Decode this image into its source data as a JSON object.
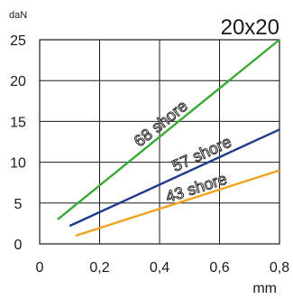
{
  "chart_data": {
    "type": "line",
    "title": "20x20",
    "xlabel": "mm",
    "ylabel": "daN",
    "xlim": [
      0,
      0.8
    ],
    "ylim": [
      0,
      25
    ],
    "x_ticks": [
      0,
      0.2,
      0.4,
      0.6,
      0.8
    ],
    "x_tick_labels": [
      "0",
      "0,2",
      "0,4",
      "0,6",
      "0,8"
    ],
    "y_ticks": [
      0,
      5,
      10,
      15,
      20,
      25
    ],
    "y_tick_labels": [
      "0",
      "5",
      "10",
      "15",
      "20",
      "25"
    ],
    "grid": true,
    "series": [
      {
        "name": "68 shore",
        "color": "#3aaa35",
        "x": [
          0.06,
          0.8
        ],
        "y": [
          3.0,
          25.0
        ]
      },
      {
        "name": "57 shore",
        "color": "#1f3a8a",
        "x": [
          0.1,
          0.8
        ],
        "y": [
          2.2,
          14.0
        ]
      },
      {
        "name": "43 shore",
        "color": "#f0a21c",
        "x": [
          0.12,
          0.8
        ],
        "y": [
          1.0,
          9.0
        ]
      }
    ]
  }
}
